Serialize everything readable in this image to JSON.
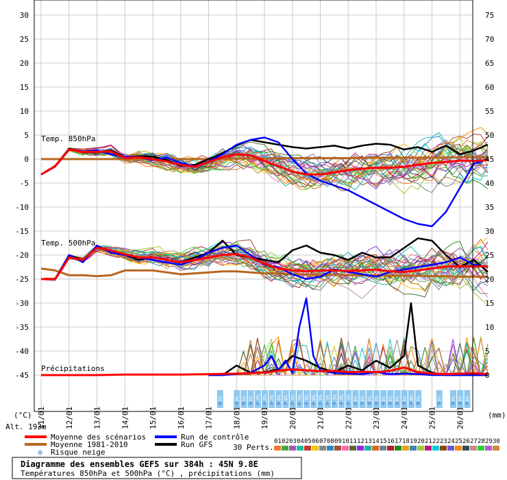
{
  "chart_data": {
    "type": "line",
    "title": "Diagramme des ensembles GEFS sur 384h : 45N 9.8E",
    "subtitle": "Températures 850hPa et 500hPa (°C) , précipitations (mm)",
    "altitude_label": "Alt. 193m",
    "left_unit": "(°C)",
    "right_unit": "(mm)",
    "y_left_ticks": [
      30,
      25,
      20,
      15,
      10,
      5,
      0,
      -5,
      -10,
      -15,
      -20,
      -25,
      -30,
      -35,
      -40,
      -45
    ],
    "y_right_ticks": [
      75,
      70,
      65,
      60,
      55,
      50,
      45,
      40,
      35,
      30,
      25,
      20,
      15,
      10,
      5,
      0
    ],
    "ylim_left": [
      -45,
      30
    ],
    "ylim_right": [
      0,
      75
    ],
    "x_dates": [
      "11/01",
      "12/01",
      "13/01",
      "14/01",
      "15/01",
      "16/01",
      "17/01",
      "18/01",
      "19/01",
      "20/01",
      "21/01",
      "22/01",
      "23/01",
      "24/01",
      "25/01",
      "26/01"
    ],
    "section_labels": {
      "t850": "Temp. 850hPa",
      "t500": "Temp. 500hPa",
      "precip": "Précipitations"
    },
    "legend": {
      "mean": "Moyenne des scénarios",
      "climo": "Moyenne 1981-2010",
      "snow": "Risque neige",
      "control": "Run de contrôle",
      "gfs": "Run GFS",
      "perts_label": "30 Perts."
    },
    "snow_risk": [
      {
        "day": 6.4,
        "pct": "3%"
      },
      {
        "day": 7.0,
        "pct": "3%"
      },
      {
        "day": 7.25,
        "pct": "3%"
      },
      {
        "day": 7.5,
        "pct": "3%"
      },
      {
        "day": 7.75,
        "pct": "13%"
      },
      {
        "day": 8.0,
        "pct": "13%"
      },
      {
        "day": 8.25,
        "pct": "13%"
      },
      {
        "day": 8.5,
        "pct": "10%"
      },
      {
        "day": 8.75,
        "pct": "10%"
      },
      {
        "day": 9.0,
        "pct": "13%"
      },
      {
        "day": 9.25,
        "pct": "23%"
      },
      {
        "day": 9.5,
        "pct": "23%"
      },
      {
        "day": 9.75,
        "pct": "20%"
      },
      {
        "day": 10.0,
        "pct": "23%"
      },
      {
        "day": 10.25,
        "pct": "23%"
      },
      {
        "day": 10.5,
        "pct": "13%"
      },
      {
        "day": 10.75,
        "pct": "13%"
      },
      {
        "day": 11.0,
        "pct": "13%"
      },
      {
        "day": 11.25,
        "pct": "6%"
      },
      {
        "day": 11.5,
        "pct": "6%"
      },
      {
        "day": 11.75,
        "pct": "3%"
      },
      {
        "day": 12.0,
        "pct": "3%"
      },
      {
        "day": 12.25,
        "pct": "6%"
      },
      {
        "day": 12.5,
        "pct": "6%"
      },
      {
        "day": 12.75,
        "pct": "6%"
      },
      {
        "day": 13.0,
        "pct": "6%"
      },
      {
        "day": 13.25,
        "pct": "10%"
      },
      {
        "day": 13.5,
        "pct": "3%"
      },
      {
        "day": 14.25,
        "pct": "3%"
      },
      {
        "day": 14.75,
        "pct": "3%"
      },
      {
        "day": 15.0,
        "pct": "3%"
      },
      {
        "day": 15.25,
        "pct": "6%"
      }
    ],
    "series": [
      {
        "kind": "mean",
        "level": "t850",
        "x": [
          0,
          0.5,
          1,
          1.5,
          2,
          2.5,
          3,
          3.5,
          4,
          4.5,
          5,
          5.5,
          6,
          6.5,
          7,
          7.5,
          8,
          8.5,
          9,
          9.5,
          10,
          10.5,
          11,
          11.5,
          12,
          12.5,
          13,
          13.5,
          14,
          14.5,
          15,
          15.5,
          16
        ],
        "y": [
          -3.2,
          -1.5,
          2,
          1.5,
          1.5,
          1.6,
          0.2,
          0.4,
          0,
          -0.5,
          -1.2,
          -1.6,
          -0.6,
          0.4,
          1,
          0.8,
          -0.4,
          -1.5,
          -2.6,
          -3.2,
          -3.2,
          -2.8,
          -2.3,
          -2,
          -1.8,
          -1.8,
          -1.6,
          -1.2,
          -0.8,
          -0.6,
          -0.3,
          -0.4,
          -0.2
        ]
      },
      {
        "kind": "climo",
        "level": "t850",
        "x": [
          0,
          1,
          2,
          3,
          4,
          5,
          6,
          7,
          8,
          9,
          10,
          11,
          12,
          13,
          14,
          15,
          16
        ],
        "y": [
          0,
          0,
          0,
          0,
          0,
          0,
          0,
          0.1,
          0.1,
          0.2,
          0.2,
          0.2,
          0.3,
          0.3,
          0.3,
          0.4,
          0.4
        ]
      },
      {
        "kind": "control",
        "level": "t850",
        "x": [
          0,
          0.5,
          1,
          1.5,
          2,
          2.5,
          3,
          3.5,
          4,
          4.5,
          5,
          5.5,
          6,
          6.5,
          7,
          7.5,
          8,
          8.5,
          9,
          9.5,
          10,
          10.5,
          11,
          11.5,
          12,
          12.5,
          13,
          13.5,
          14,
          14.5,
          15,
          15.5,
          16
        ],
        "y": [
          -3.2,
          -1.5,
          2,
          1.6,
          1.8,
          1,
          0.5,
          0.4,
          -0.2,
          0.3,
          -0.8,
          -1.5,
          -0.5,
          1,
          3,
          4,
          4.5,
          3.5,
          0,
          -3,
          -4.5,
          -5.5,
          -6.5,
          -8,
          -9.5,
          -11,
          -12.5,
          -13.5,
          -14,
          -11,
          -6,
          -1,
          0
        ]
      },
      {
        "kind": "gfs",
        "level": "t850",
        "x": [
          0,
          0.5,
          1,
          1.5,
          2,
          2.5,
          3,
          3.5,
          4,
          4.5,
          5,
          5.5,
          6,
          6.5,
          7,
          7.5,
          8,
          8.5,
          9,
          9.5,
          10,
          10.5,
          11,
          11.5,
          12,
          12.5,
          13,
          13.5,
          14,
          14.5,
          15,
          15.5,
          16
        ],
        "y": [
          -3.2,
          -1.5,
          2.2,
          1.4,
          1.4,
          1.8,
          0.4,
          0.6,
          0.5,
          -0.2,
          -1.4,
          -1.2,
          0,
          1.2,
          2.8,
          4,
          3.5,
          3,
          2.5,
          2.2,
          2.5,
          2.8,
          2.2,
          2.8,
          3.2,
          3,
          2,
          2.5,
          1.5,
          2.8,
          1,
          1.8,
          3
        ]
      },
      {
        "kind": "mean",
        "level": "t500",
        "x": [
          0,
          0.5,
          1,
          1.5,
          2,
          2.5,
          3,
          3.5,
          4,
          4.5,
          5,
          5.5,
          6,
          6.5,
          7,
          7.5,
          8,
          8.5,
          9,
          9.5,
          10,
          10.5,
          11,
          11.5,
          12,
          12.5,
          13,
          13.5,
          14,
          14.5,
          15,
          15.5,
          16
        ],
        "y": [
          -25,
          -25,
          -20.5,
          -21,
          -18.5,
          -19,
          -19.8,
          -20.5,
          -20.5,
          -21,
          -21.5,
          -21,
          -20.5,
          -20,
          -19.8,
          -20.5,
          -21.8,
          -22.8,
          -23.2,
          -23.4,
          -23.2,
          -23.2,
          -23.3,
          -23.2,
          -23,
          -23.4,
          -23.5,
          -23.2,
          -22.8,
          -22.4,
          -22.3,
          -22.4,
          -22.3
        ]
      },
      {
        "kind": "climo",
        "level": "t500",
        "x": [
          0,
          0.5,
          1,
          1.5,
          2,
          2.5,
          3,
          3.5,
          4,
          4.5,
          5,
          5.5,
          6,
          6.5,
          7,
          7.5,
          8,
          8.5,
          9,
          9.5,
          10,
          10.5,
          11,
          11.5,
          12,
          12.5,
          13,
          13.5,
          14,
          14.5,
          15,
          15.5,
          16
        ],
        "y": [
          -22.8,
          -23.2,
          -24.2,
          -24.2,
          -24.4,
          -24.2,
          -23.2,
          -23.2,
          -23.2,
          -23.6,
          -24,
          -23.8,
          -23.6,
          -23.4,
          -23.4,
          -23.6,
          -23.8,
          -23.8,
          -24,
          -24,
          -24.1,
          -24.1,
          -24.2,
          -24.2,
          -24.2,
          -24.3,
          -24.3,
          -24.3,
          -24.4,
          -24.4,
          -24.5,
          -24.5,
          -24.5
        ]
      },
      {
        "kind": "control",
        "level": "t500",
        "x": [
          0,
          0.5,
          1,
          1.5,
          2,
          2.5,
          3,
          3.5,
          4,
          4.5,
          5,
          5.5,
          6,
          6.5,
          7,
          7.5,
          8,
          8.5,
          9,
          9.5,
          10,
          10.5,
          11,
          11.5,
          12,
          12.5,
          13,
          13.5,
          14,
          14.5,
          15,
          15.5,
          16
        ],
        "y": [
          -25,
          -25,
          -20,
          -21.5,
          -18,
          -19.5,
          -20,
          -20.5,
          -21,
          -21.5,
          -22,
          -21,
          -19.5,
          -18.5,
          -18,
          -20,
          -22,
          -22.5,
          -24,
          -25,
          -24.5,
          -23,
          -23.5,
          -24,
          -24.5,
          -23.5,
          -23,
          -22.5,
          -22,
          -21.5,
          -20.5,
          -22,
          -22.5
        ]
      },
      {
        "kind": "gfs",
        "level": "t500",
        "x": [
          0,
          0.5,
          1,
          1.5,
          2,
          2.5,
          3,
          3.5,
          4,
          4.5,
          5,
          5.5,
          6,
          6.5,
          7,
          7.5,
          8,
          8.5,
          9,
          9.5,
          10,
          10.5,
          11,
          11.5,
          12,
          12.5,
          13,
          13.5,
          14,
          14.5,
          15,
          15.5,
          16
        ],
        "y": [
          -25,
          -25,
          -20,
          -21,
          -18.5,
          -19,
          -20,
          -21,
          -20.5,
          -21,
          -21.5,
          -20.5,
          -19.5,
          -17,
          -20,
          -20.5,
          -21,
          -21.5,
          -19,
          -18,
          -19.5,
          -20,
          -21,
          -19.5,
          -20.5,
          -20.5,
          -18.5,
          -16.5,
          -17,
          -20,
          -22.5,
          -21,
          -23.5
        ]
      },
      {
        "kind": "mean",
        "level": "precip",
        "x": [
          0,
          1,
          2,
          3,
          4,
          5,
          6,
          7,
          8,
          8.5,
          9,
          9.5,
          10,
          10.5,
          11,
          11.5,
          12,
          12.5,
          13,
          13.5,
          14,
          14.5,
          15,
          15.5,
          16
        ],
        "y": [
          0,
          0,
          0,
          0.1,
          0.1,
          0.1,
          0.2,
          0.3,
          0.5,
          0.9,
          1.2,
          1,
          0.8,
          0.9,
          0.6,
          0.7,
          0.6,
          0.9,
          1.6,
          0.6,
          0.3,
          0.2,
          0.3,
          0.4,
          0.2
        ]
      },
      {
        "kind": "control",
        "level": "precip",
        "x": [
          6,
          6.5,
          7,
          7.5,
          8,
          8.25,
          8.5,
          8.75,
          9,
          9.25,
          9.5,
          9.75,
          10,
          10.5,
          11,
          11.5,
          12,
          12.5,
          13,
          13.5,
          14,
          14.5,
          15,
          15.5,
          16
        ],
        "y": [
          0,
          0,
          0.2,
          0.5,
          2,
          4,
          1,
          3,
          0.5,
          10,
          16,
          4,
          1,
          0.4,
          0.3,
          0.2,
          0.6,
          0.2,
          0.3,
          0.2,
          0,
          0,
          0,
          0,
          0
        ]
      },
      {
        "kind": "gfs",
        "level": "precip",
        "x": [
          6,
          6.5,
          7,
          7.5,
          8,
          8.5,
          9,
          9.5,
          10,
          10.5,
          11,
          11.5,
          12,
          12.5,
          13,
          13.25,
          13.5,
          14,
          14.5,
          15,
          15.5,
          16
        ],
        "y": [
          0,
          0,
          2,
          0.5,
          0.6,
          1.2,
          4,
          3,
          1.5,
          0.6,
          2,
          1,
          3,
          1.5,
          4,
          15,
          2,
          0.5,
          0,
          0,
          0,
          0
        ]
      }
    ]
  }
}
